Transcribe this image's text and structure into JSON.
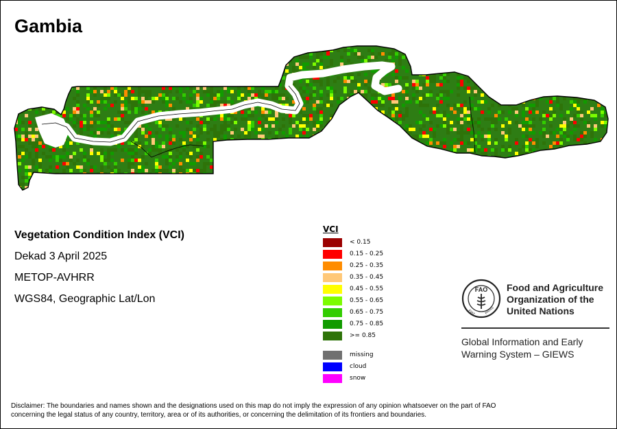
{
  "map": {
    "title": "Gambia",
    "index_name": "Vegetation Condition Index (VCI)",
    "period": "Dekad 3 April 2025",
    "sensor": "METOP-AVHRR",
    "projection": "WGS84, Geographic Lat/Lon",
    "colors": {
      "dominant": "#2e7d14",
      "river": "#ffffff",
      "border": "#000000"
    }
  },
  "legend": {
    "title": "VCI",
    "classes": [
      {
        "label": "< 0.15",
        "color": "#9b0000"
      },
      {
        "label": "0.15 - 0.25",
        "color": "#ff0000"
      },
      {
        "label": "0.25 - 0.35",
        "color": "#ff8c00"
      },
      {
        "label": "0.35 - 0.45",
        "color": "#ffc878"
      },
      {
        "label": "0.45 - 0.55",
        "color": "#ffff00"
      },
      {
        "label": "0.55 - 0.65",
        "color": "#7cfc00"
      },
      {
        "label": "0.65 - 0.75",
        "color": "#32cd00"
      },
      {
        "label": "0.75 - 0.85",
        "color": "#119b00"
      },
      {
        "label": ">= 0.85",
        "color": "#2e7309"
      }
    ],
    "special": [
      {
        "label": "missing",
        "color": "#707070"
      },
      {
        "label": "cloud",
        "color": "#0000ff"
      },
      {
        "label": "snow",
        "color": "#ff00ff"
      }
    ]
  },
  "branding": {
    "org_line1": "Food and Agriculture",
    "org_line2": "Organization of the",
    "org_line3": "United Nations",
    "logo_text": "FAO",
    "logo_arc_left": "FIAT",
    "logo_arc_right": "PANIS",
    "giews_line1": "Global Information and Early",
    "giews_line2": "Warning System – GIEWS"
  },
  "disclaimer": {
    "line1": "Disclaimer: The boundaries and names shown and the designations used on this map do not imply the expression of any opinion whatsoever on the part of FAO",
    "line2": "concerning the legal status of any country, territory, area or of its authorities, or concerning the delimitation of its frontiers and boundaries."
  }
}
